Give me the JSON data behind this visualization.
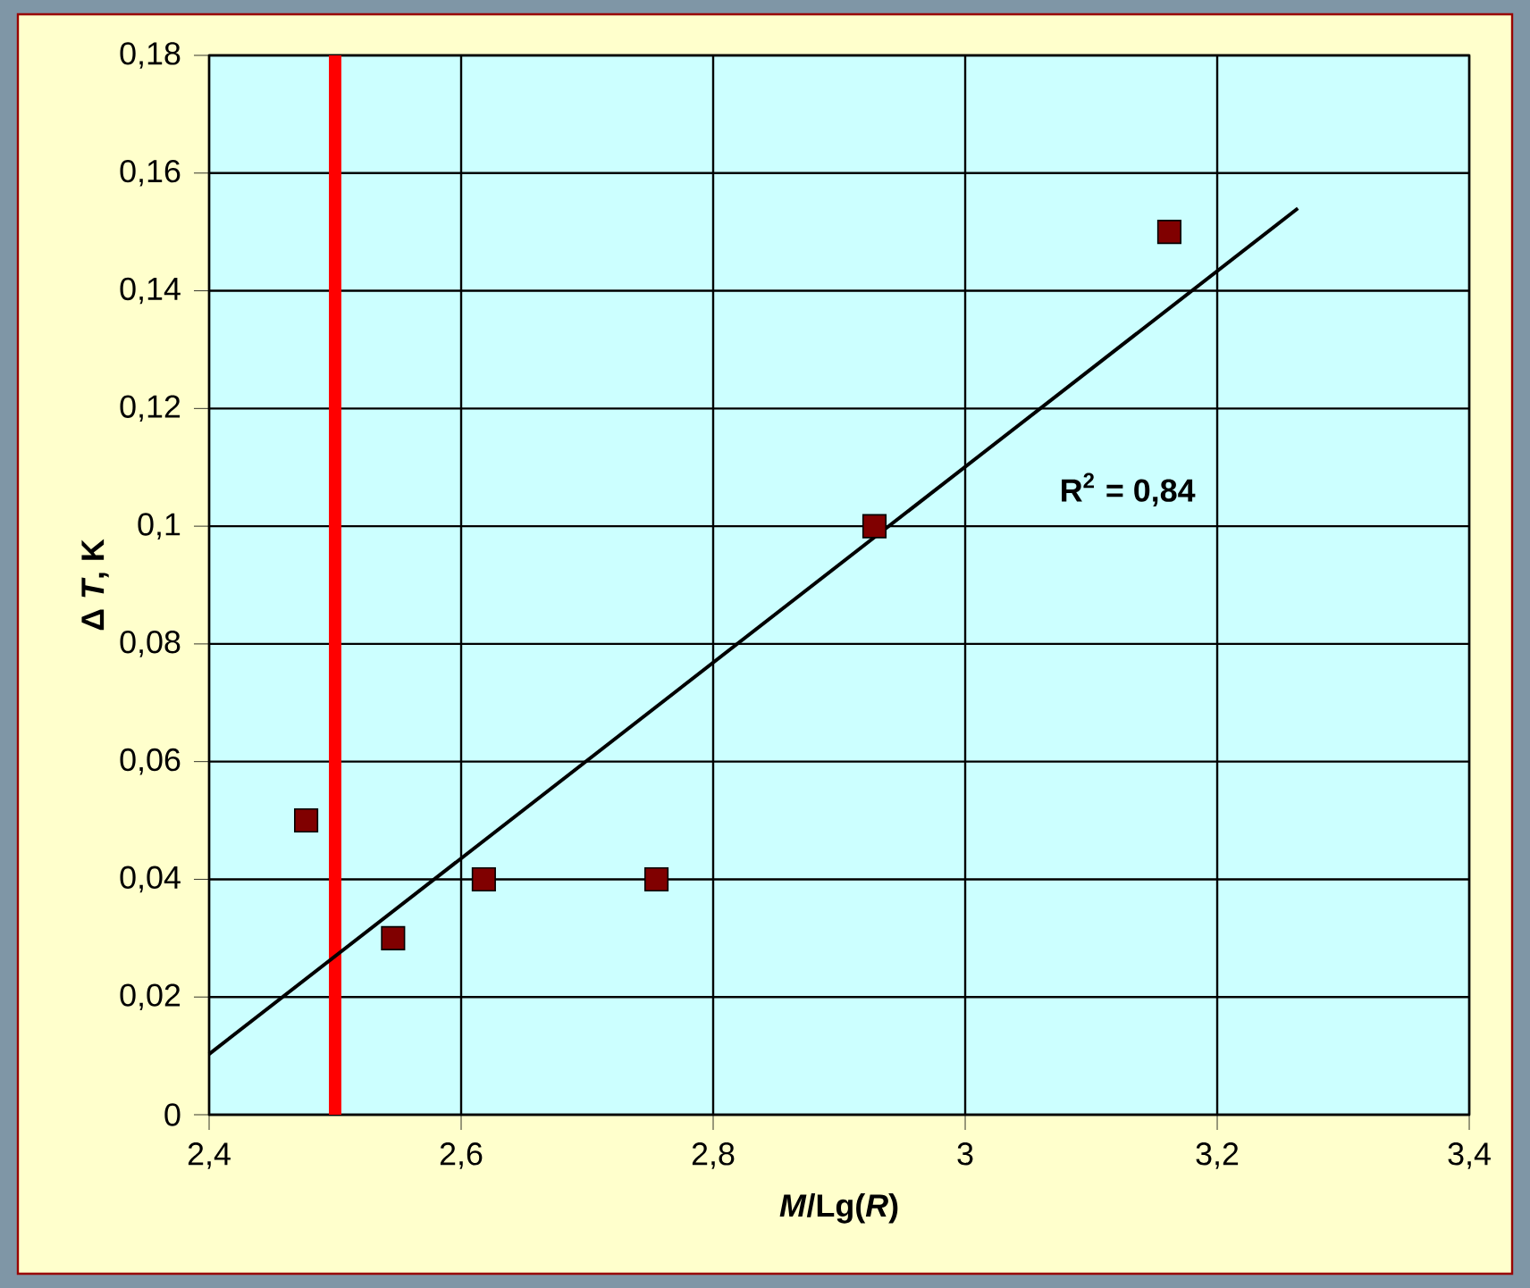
{
  "chart_data": {
    "type": "scatter",
    "xlabel": "*M*/Lg(*R*)",
    "ylabel": "Δ *T*, K",
    "annotations": [
      "R$^{2}$ = 0,84"
    ],
    "series": [
      {
        "color": "#800000",
        "marker": "square",
        "x": [
          2.477,
          2.546,
          2.618,
          2.755,
          2.928,
          3.162
        ],
        "values": [
          0.05,
          0.03,
          0.04,
          0.04,
          0.1,
          0.15
        ]
      },
      {
        "type": "line",
        "color": "#000000",
        "marker": "none",
        "line_style": "solid",
        "x": [
          2.4,
          3.264
        ],
        "values": [
          0.0103,
          0.154
        ]
      }
    ],
    "xlim": [
      2.4,
      3.4
    ],
    "xticks": [
      {
        "value": 2.4,
        "label": "2,4"
      },
      {
        "value": 2.6,
        "label": "2,6"
      },
      {
        "value": 2.8,
        "label": "2,8"
      },
      3,
      {
        "value": 3.2,
        "label": "3,2"
      },
      {
        "value": 3.4,
        "label": "3,4"
      }
    ],
    "ylim": [
      0,
      0.18
    ],
    "yticks": [
      0,
      {
        "value": 0.02,
        "label": "0,02"
      },
      {
        "value": 0.04,
        "label": "0,04"
      },
      {
        "value": 0.06,
        "label": "0,06"
      },
      {
        "value": 0.08,
        "label": "0,08"
      },
      {
        "value": 0.1,
        "label": "0,1"
      },
      {
        "value": 0.12,
        "label": "0,12"
      },
      {
        "value": 0.14,
        "label": "0,14"
      },
      {
        "value": 0.16,
        "label": "0,16"
      },
      {
        "value": 0.18,
        "label": "0,18"
      }
    ],
    "ref_lines": [
      {
        "axis": "x",
        "value": 2.5,
        "color": "#ff0000"
      }
    ],
    "grid": true
  }
}
